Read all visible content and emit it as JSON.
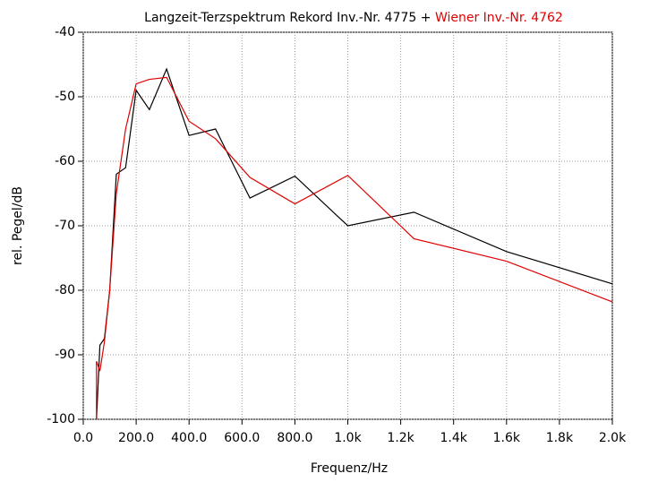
{
  "chart_data": {
    "type": "line",
    "title": "Langzeit-Terzspektrum Rekord Inv.-Nr. 4775 +",
    "title_highlight": "Wiener Inv.-Nr. 4762",
    "title_highlight_color": "#e00000",
    "xlabel": "Frequenz/Hz",
    "ylabel": "rel. Pegel/dB",
    "xlim": [
      0,
      2000
    ],
    "ylim": [
      -100,
      -40
    ],
    "xticks": [
      {
        "value": 0,
        "label": "0.0"
      },
      {
        "value": 200,
        "label": "200.0"
      },
      {
        "value": 400,
        "label": "400.0"
      },
      {
        "value": 600,
        "label": "600.0"
      },
      {
        "value": 800,
        "label": "800.0"
      },
      {
        "value": 1000,
        "label": "1.0k"
      },
      {
        "value": 1200,
        "label": "1.2k"
      },
      {
        "value": 1400,
        "label": "1.4k"
      },
      {
        "value": 1600,
        "label": "1.6k"
      },
      {
        "value": 1800,
        "label": "1.8k"
      },
      {
        "value": 2000,
        "label": "2.0k"
      }
    ],
    "yticks": [
      -100,
      -90,
      -80,
      -70,
      -60,
      -50,
      -40
    ],
    "grid": true,
    "series": [
      {
        "color": "#000000",
        "x": [
          50,
          63,
          80,
          100,
          125,
          160,
          200,
          250,
          315,
          400,
          500,
          630,
          800,
          1000,
          1250,
          1600,
          2000
        ],
        "values": [
          -100,
          -88.5,
          -87.5,
          -80,
          -62,
          -61,
          -49,
          -52,
          -45.7,
          -56,
          -55,
          -65.7,
          -62.3,
          -70,
          -67.9,
          -74,
          -79
        ]
      },
      {
        "color": "#e00000",
        "x": [
          50,
          50,
          63,
          80,
          100,
          125,
          160,
          200,
          250,
          315,
          400,
          500,
          630,
          800,
          1000,
          1250,
          1600,
          2000
        ],
        "values": [
          -100,
          -91,
          -92.5,
          -88,
          -80,
          -65,
          -55,
          -48,
          -47.3,
          -47,
          -53.8,
          -56.5,
          -62.5,
          -66.6,
          -62.2,
          -72,
          -75.5,
          -81.8
        ]
      }
    ]
  }
}
